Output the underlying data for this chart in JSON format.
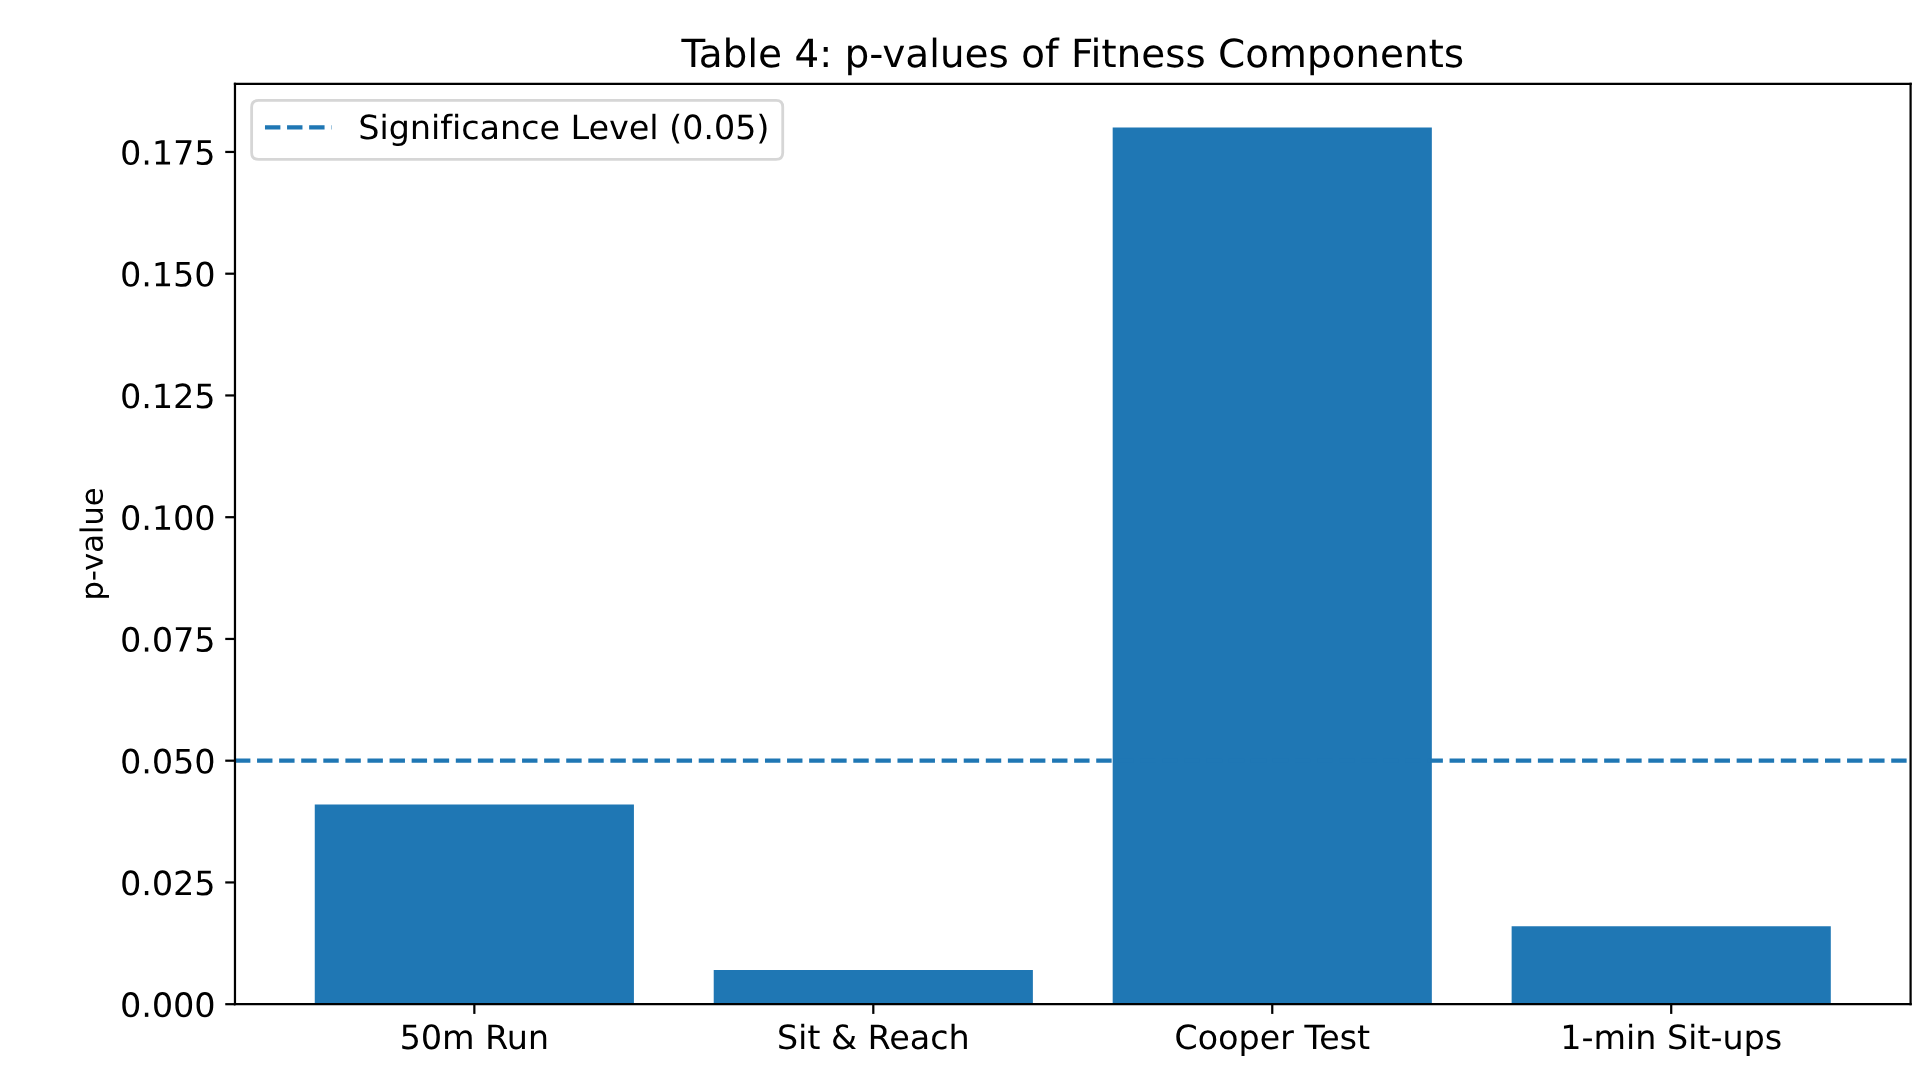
{
  "chart_data": {
    "type": "bar",
    "title": "Table 4: p-values of Fitness Components",
    "ylabel": "p-value",
    "categories": [
      "50m Run",
      "Sit & Reach",
      "Cooper Test",
      "1-min Sit-ups"
    ],
    "values": [
      0.041,
      0.007,
      0.18,
      0.016
    ],
    "color": "#1f77b4",
    "ylim": [
      0,
      0.189
    ],
    "yticks": [
      {
        "value": 0,
        "label": "0.000"
      },
      {
        "value": 0.025,
        "label": "0.025"
      },
      {
        "value": 0.05,
        "label": "0.050"
      },
      {
        "value": 0.075,
        "label": "0.075"
      },
      {
        "value": 0.1,
        "label": "0.100"
      },
      {
        "value": 0.125,
        "label": "0.125"
      },
      {
        "value": 0.15,
        "label": "0.150"
      },
      {
        "value": 0.175,
        "label": "0.175"
      }
    ],
    "ref_lines": [
      {
        "axis": "y",
        "value": 0.05,
        "label": "Significance Level (0.05)",
        "color": "#1f77b4",
        "line_style": "dashed"
      }
    ],
    "legend": "top left",
    "grid": false
  }
}
